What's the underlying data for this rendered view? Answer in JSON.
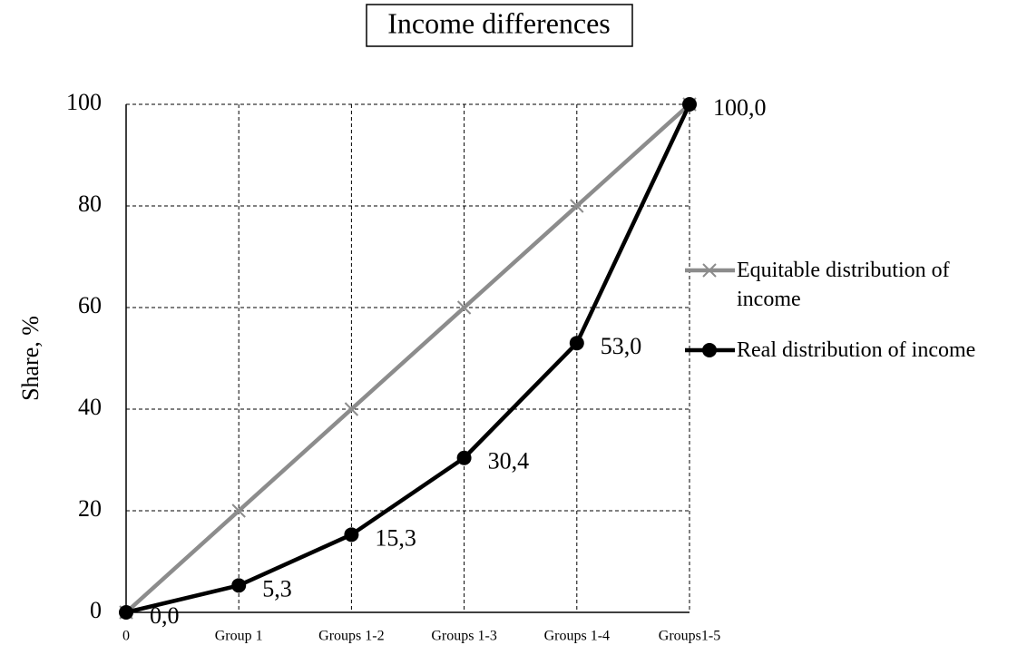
{
  "chart_data": {
    "type": "line",
    "title": "Income differences",
    "y_label": "Share, %",
    "categories": [
      "0",
      "Group 1",
      "Groups 1-2",
      "Groups 1-3",
      "Groups 1-4",
      "Groups1-5"
    ],
    "series": [
      {
        "name": "Equitable distribution of income",
        "color": "#8c8c8c",
        "marker": "x",
        "values": [
          0,
          20,
          40,
          60,
          80,
          100
        ]
      },
      {
        "name": "Real distribution of income",
        "color": "#000000",
        "marker": "circle",
        "values": [
          0,
          5.3,
          15.3,
          30.4,
          53.0,
          100.0
        ],
        "value_labels": [
          "0,0",
          "5,3",
          "15,3",
          "30,4",
          "53,0",
          "100,0"
        ]
      }
    ],
    "ylim": [
      0,
      100
    ],
    "yticks": [
      0,
      20,
      40,
      60,
      80,
      100
    ],
    "grid": true,
    "legend": "right"
  }
}
